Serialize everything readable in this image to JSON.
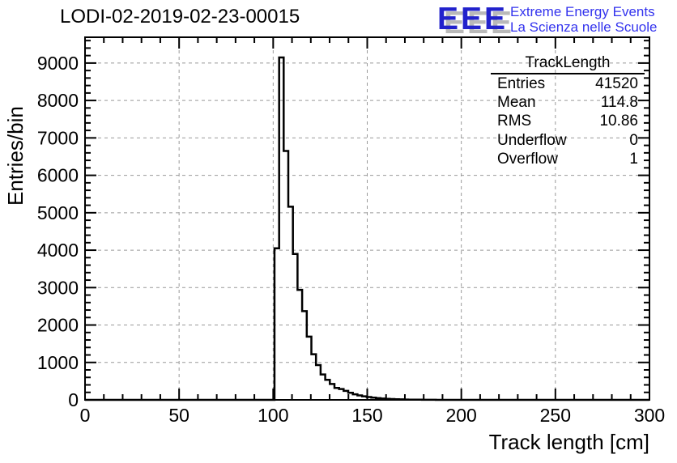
{
  "header": {
    "title": "LODI-02-2019-02-23-00015"
  },
  "logo": {
    "acronym": "EEE",
    "tagline_line1": "Extreme Energy Events",
    "tagline_line2": "La Scienza nelle Scuole",
    "acronym_color": "#2222cc",
    "acronym_shadow_color": "#b9b9b9",
    "tagline_color": "#3333ee"
  },
  "stats_box": {
    "title": "TrackLength",
    "rows": [
      {
        "label": "Entries",
        "value": "41520"
      },
      {
        "label": "Mean",
        "value": "114.8"
      },
      {
        "label": "RMS",
        "value": "10.86"
      },
      {
        "label": "Underflow",
        "value": "0"
      },
      {
        "label": "Overflow",
        "value": "1"
      }
    ]
  },
  "chart_data": {
    "type": "bar",
    "title": "LODI-02-2019-02-23-00015",
    "xlabel": "Track length [cm]",
    "ylabel": "Entries/bin",
    "xlim": [
      0,
      300
    ],
    "ylim": [
      0,
      9690
    ],
    "x_major_ticks": [
      0,
      50,
      100,
      150,
      200,
      250,
      300
    ],
    "x_minor_step": 10,
    "y_major_ticks": [
      0,
      1000,
      2000,
      3000,
      4000,
      5000,
      6000,
      7000,
      8000,
      9000
    ],
    "y_minor_step": 200,
    "grid": true,
    "grid_color": "#999999",
    "line_color": "#000000",
    "frame_color": "#000000",
    "histogram": {
      "bin_start": 100.7,
      "bin_width": 2.45,
      "values": [
        4050,
        9150,
        6650,
        5160,
        3900,
        2940,
        2370,
        1690,
        1220,
        930,
        680,
        535,
        425,
        320,
        290,
        240,
        190,
        150,
        120,
        95,
        75,
        60,
        45,
        35,
        27,
        21,
        16,
        12,
        9,
        7,
        5,
        4,
        3,
        2,
        2,
        1,
        1,
        1,
        0,
        0
      ]
    }
  }
}
